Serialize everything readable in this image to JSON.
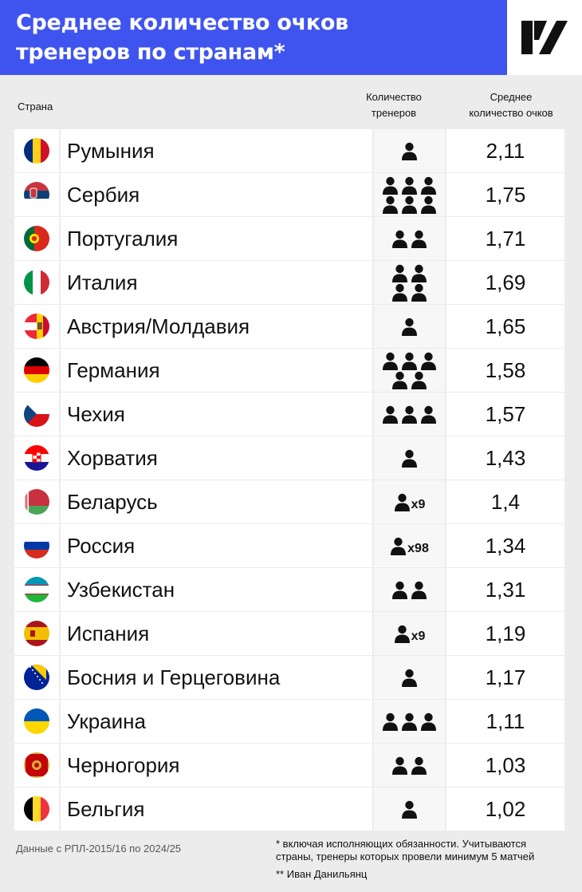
{
  "title_line1": "Среднее количество очков",
  "title_line2": "тренеров по странам*",
  "headers": {
    "country": "Страна",
    "count_line1": "Количество",
    "count_line2": "тренеров",
    "avg_line1": "Среднее",
    "avg_line2": "количество очков"
  },
  "colors": {
    "title_bg": "#3f54ef",
    "page_bg": "#ececec",
    "cell_bg": "#ffffff",
    "count_bg": "#f7f7f7"
  },
  "chart_data": {
    "type": "table",
    "columns": [
      "Страна",
      "Количество тренеров",
      "Среднее количество очков"
    ],
    "rows": [
      {
        "country": "Румыния",
        "flag": "flag-romania",
        "coaches": 1,
        "avg": "2,11"
      },
      {
        "country": "Сербия",
        "flag": "flag-serbia",
        "coaches": 6,
        "avg": "1,75"
      },
      {
        "country": "Португалия",
        "flag": "flag-portugal",
        "coaches": 2,
        "avg": "1,71"
      },
      {
        "country": "Италия",
        "flag": "flag-italy",
        "coaches": 4,
        "avg": "1,69"
      },
      {
        "country": "Австрия/Молдавия",
        "flag": "flag-austria-moldova",
        "coaches": 1,
        "avg": "1,65"
      },
      {
        "country": "Германия",
        "flag": "flag-germany",
        "coaches": 5,
        "avg": "1,58"
      },
      {
        "country": "Чехия",
        "flag": "flag-czechia",
        "coaches": 3,
        "avg": "1,57"
      },
      {
        "country": "Хорватия",
        "flag": "flag-croatia",
        "coaches": 1,
        "avg": "1,43"
      },
      {
        "country": "Беларусь",
        "flag": "flag-belarus",
        "coaches": 9,
        "multiplier": "x9",
        "avg": "1,4"
      },
      {
        "country": "Россия",
        "flag": "flag-russia",
        "coaches": 98,
        "multiplier": "x98",
        "avg": "1,34"
      },
      {
        "country": "Узбекистан",
        "flag": "flag-uzbekistan",
        "coaches": 2,
        "avg": "1,31"
      },
      {
        "country": "Испания",
        "flag": "flag-spain",
        "coaches": 9,
        "multiplier": "x9",
        "avg": "1,19"
      },
      {
        "country": "Босния и Герцеговина",
        "flag": "flag-bosnia",
        "coaches": 1,
        "avg": "1,17"
      },
      {
        "country": "Украина",
        "flag": "flag-ukraine",
        "coaches": 3,
        "avg": "1,11"
      },
      {
        "country": "Черногория",
        "flag": "flag-montenegro",
        "coaches": 2,
        "avg": "1,03"
      },
      {
        "country": "Бельгия",
        "flag": "flag-belgium",
        "coaches": 1,
        "avg": "1,02"
      }
    ]
  },
  "footer": {
    "source": "Данные с РПЛ-2015/16 по 2024/25",
    "note_line1": "* включая исполняющих обязанности. Учитываются",
    "note_line2": "страны, тренеры которых провели минимум 5 матчей",
    "author": "** Иван Данильянц"
  }
}
